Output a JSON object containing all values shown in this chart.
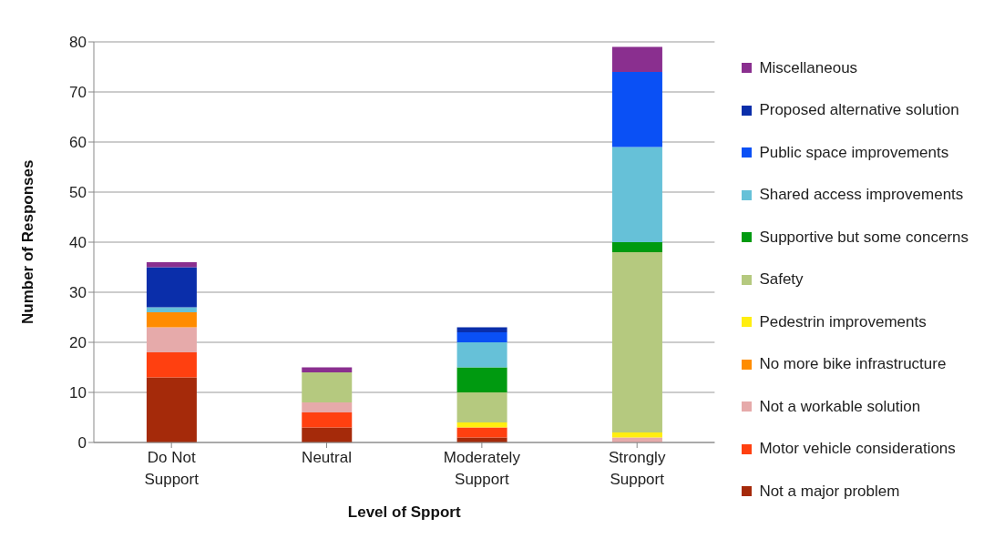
{
  "chart_data": {
    "type": "bar",
    "stacked": true,
    "xlabel": "Level of Spport",
    "ylabel": "Number of Responses",
    "categories": [
      "Do Not Support",
      "Neutral",
      "Moderately Support",
      "Strongly Support"
    ],
    "series": [
      {
        "name": "Not a major problem",
        "color": "#a52a0a",
        "values": [
          13,
          3,
          1,
          0
        ]
      },
      {
        "name": "Motor vehicle considerations",
        "color": "#ff4010",
        "values": [
          5,
          3,
          2,
          0
        ]
      },
      {
        "name": "Not a workable solution",
        "color": "#e6aaaa",
        "values": [
          5,
          2,
          0,
          1
        ]
      },
      {
        "name": "No more bike infrastructure",
        "color": "#ff8c00",
        "values": [
          3,
          0,
          0,
          0
        ]
      },
      {
        "name": "Pedestrin improvements",
        "color": "#ffee10",
        "values": [
          0,
          0,
          1,
          1
        ]
      },
      {
        "name": "Safety",
        "color": "#b5c97f",
        "values": [
          0,
          6,
          6,
          36
        ]
      },
      {
        "name": "Supportive but some concerns",
        "color": "#009a10",
        "values": [
          0,
          0,
          5,
          2
        ]
      },
      {
        "name": "Shared access improvements",
        "color": "#66c1d8",
        "values": [
          1,
          0,
          5,
          19
        ]
      },
      {
        "name": "Public space improvements",
        "color": "#0a50f5",
        "values": [
          0,
          0,
          2,
          15
        ]
      },
      {
        "name": "Proposed alternative solution",
        "color": "#0a2eaa",
        "values": [
          8,
          0,
          1,
          0
        ]
      },
      {
        "name": "Miscellaneous",
        "color": "#8a2f8f",
        "values": [
          1,
          1,
          0,
          5
        ]
      }
    ],
    "ylim": [
      0,
      80
    ],
    "yticks": [
      0,
      10,
      20,
      30,
      40,
      50,
      60,
      70,
      80
    ],
    "grid": "y",
    "legend": "right"
  }
}
